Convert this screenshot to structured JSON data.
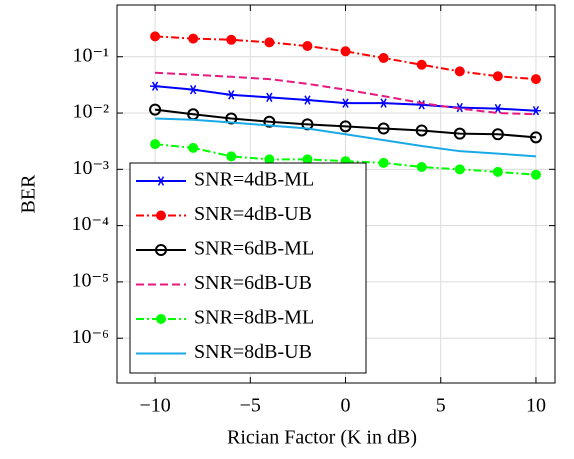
{
  "chart_data": {
    "type": "line",
    "xlabel": "Rician Factor (K in dB)",
    "ylabel": "BER",
    "x": [
      -10,
      -8,
      -6,
      -4,
      -2,
      0,
      2,
      4,
      6,
      8,
      10
    ],
    "xlim": [
      -12,
      11
    ],
    "xticks": [
      -10,
      -5,
      0,
      5,
      10
    ],
    "ylim": [
      1.6e-07,
      0.83
    ],
    "yticks": [
      {
        "value": 0.1,
        "label": "10⁻¹"
      },
      {
        "value": 0.01,
        "label": "10⁻²"
      },
      {
        "value": 0.001,
        "label": "10⁻³"
      },
      {
        "value": 0.0001,
        "label": "10⁻⁴"
      },
      {
        "value": 1e-05,
        "label": "10⁻⁵"
      },
      {
        "value": 1e-06,
        "label": "10⁻⁶"
      }
    ],
    "log_y": true,
    "grid": true,
    "legend": "lower-left",
    "series": [
      {
        "name": "SNR=4dB-ML",
        "color": "#0000ff",
        "dash": "solid",
        "marker": "star",
        "values": [
          0.03,
          0.026,
          0.021,
          0.019,
          0.017,
          0.015,
          0.015,
          0.014,
          0.0125,
          0.012,
          0.011
        ]
      },
      {
        "name": "SNR=4dB-UB",
        "color": "#ff0000",
        "dash": "dashdot",
        "marker": "filled",
        "values": [
          0.23,
          0.21,
          0.2,
          0.18,
          0.155,
          0.125,
          0.095,
          0.072,
          0.055,
          0.045,
          0.04
        ]
      },
      {
        "name": "SNR=6dB-ML",
        "color": "#000000",
        "dash": "solid",
        "marker": "open",
        "values": [
          0.0115,
          0.0095,
          0.008,
          0.007,
          0.0063,
          0.0058,
          0.0053,
          0.0049,
          0.0043,
          0.0042,
          0.0037
        ]
      },
      {
        "name": "SNR=6dB-UB",
        "color": "#e6197f",
        "dash": "dashed",
        "marker": "none",
        "values": [
          0.052,
          0.048,
          0.044,
          0.04,
          0.033,
          0.026,
          0.02,
          0.015,
          0.012,
          0.01,
          0.0095
        ]
      },
      {
        "name": "SNR=8dB-ML",
        "color": "#00ff00",
        "dash": "dashdot",
        "marker": "filled",
        "values": [
          0.0028,
          0.0024,
          0.0017,
          0.0015,
          0.0015,
          0.0014,
          0.0013,
          0.0011,
          0.001,
          0.0009,
          0.0008
        ]
      },
      {
        "name": "SNR=8dB-UB",
        "color": "#19a9e6",
        "dash": "solid",
        "marker": "none",
        "values": [
          0.008,
          0.0076,
          0.0068,
          0.006,
          0.0053,
          0.0042,
          0.0033,
          0.0026,
          0.0021,
          0.0019,
          0.0017
        ]
      }
    ]
  }
}
